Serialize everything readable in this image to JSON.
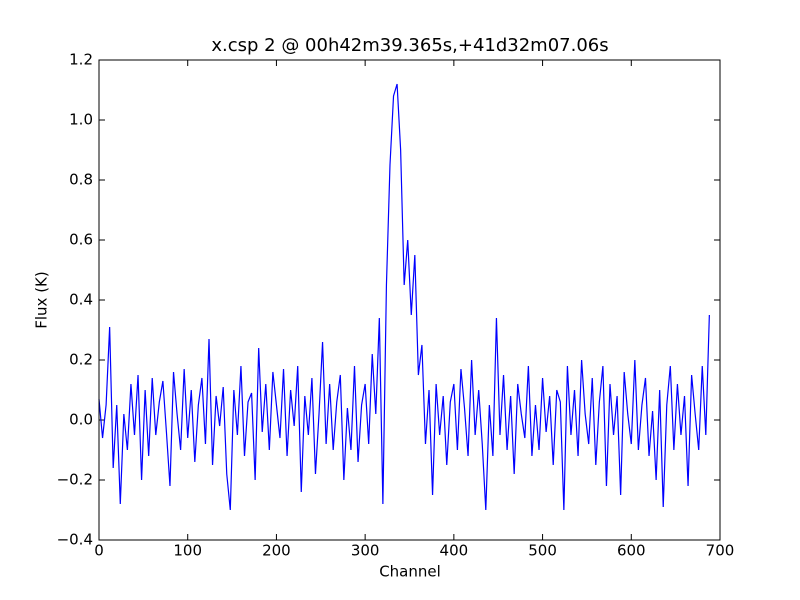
{
  "chart_data": {
    "type": "line",
    "title": "x.csp 2 @ 00h42m39.365s,+41d32m07.06s",
    "x_label": "Channel",
    "y_label": "Flux (K)",
    "xlim": [
      0,
      700
    ],
    "xticks": [
      0,
      100,
      200,
      300,
      400,
      500,
      600,
      700
    ],
    "ylim": [
      -0.4,
      1.2
    ],
    "yticks": [
      {
        "value": -0.4,
        "label": "−0.4"
      },
      {
        "value": -0.2,
        "label": "−0.2"
      },
      {
        "value": 0,
        "label": "0.0"
      },
      {
        "value": 0.2,
        "label": "0.2"
      },
      {
        "value": 0.4,
        "label": "0.4"
      },
      {
        "value": 0.6,
        "label": "0.6"
      },
      {
        "value": 0.8,
        "label": "0.8"
      },
      {
        "value": 1.0,
        "label": "1.0"
      },
      {
        "value": 1.2,
        "label": "1.2"
      }
    ],
    "x": [
      0,
      4,
      8,
      12,
      16,
      20,
      24,
      28,
      32,
      36,
      40,
      44,
      48,
      52,
      56,
      60,
      64,
      68,
      72,
      76,
      80,
      84,
      88,
      92,
      96,
      100,
      104,
      108,
      112,
      116,
      120,
      124,
      128,
      132,
      136,
      140,
      144,
      148,
      152,
      156,
      160,
      164,
      168,
      172,
      176,
      180,
      184,
      188,
      192,
      196,
      200,
      204,
      208,
      212,
      216,
      220,
      224,
      228,
      232,
      236,
      240,
      244,
      248,
      252,
      256,
      260,
      264,
      268,
      272,
      276,
      280,
      284,
      288,
      292,
      296,
      300,
      304,
      308,
      312,
      316,
      320,
      324,
      328,
      332,
      336,
      340,
      344,
      348,
      352,
      356,
      360,
      364,
      368,
      372,
      376,
      380,
      384,
      388,
      392,
      396,
      400,
      404,
      408,
      412,
      416,
      420,
      424,
      428,
      432,
      436,
      440,
      444,
      448,
      452,
      456,
      460,
      464,
      468,
      472,
      476,
      480,
      484,
      488,
      492,
      496,
      500,
      504,
      508,
      512,
      516,
      520,
      524,
      528,
      532,
      536,
      540,
      544,
      548,
      552,
      556,
      560,
      564,
      568,
      572,
      576,
      580,
      584,
      588,
      592,
      596,
      600,
      604,
      608,
      612,
      616,
      620,
      624,
      628,
      632,
      636,
      640,
      644,
      648,
      652,
      656,
      660,
      664,
      668,
      672,
      676,
      680,
      684,
      688
    ],
    "series": [
      {
        "color": "#0000ff",
        "values": [
          0.07,
          -0.06,
          0.05,
          0.31,
          -0.16,
          0.05,
          -0.28,
          0.02,
          -0.1,
          0.12,
          -0.05,
          0.15,
          -0.2,
          0.1,
          -0.12,
          0.14,
          -0.05,
          0.06,
          0.13,
          -0.04,
          -0.22,
          0.16,
          0.02,
          -0.1,
          0.17,
          -0.06,
          0.1,
          -0.14,
          0.05,
          0.14,
          -0.08,
          0.27,
          -0.15,
          0.08,
          -0.02,
          0.11,
          -0.18,
          -0.3,
          0.1,
          -0.05,
          0.18,
          -0.12,
          0.06,
          0.09,
          -0.2,
          0.24,
          -0.04,
          0.12,
          -0.1,
          0.16,
          0.05,
          -0.06,
          0.17,
          -0.12,
          0.1,
          -0.02,
          0.18,
          -0.24,
          0.08,
          -0.05,
          0.14,
          -0.18,
          0.02,
          0.26,
          -0.08,
          0.12,
          -0.1,
          0.06,
          0.15,
          -0.2,
          0.04,
          -0.1,
          0.18,
          -0.14,
          0.05,
          0.12,
          -0.08,
          0.22,
          0.02,
          0.34,
          -0.28,
          0.45,
          0.85,
          1.08,
          1.12,
          0.9,
          0.45,
          0.6,
          0.35,
          0.55,
          0.15,
          0.25,
          -0.08,
          0.1,
          -0.25,
          0.12,
          -0.05,
          0.08,
          -0.15,
          0.06,
          0.12,
          -0.1,
          0.17,
          0.04,
          -0.12,
          0.2,
          -0.05,
          0.1,
          -0.08,
          -0.3,
          0.05,
          -0.12,
          0.34,
          -0.05,
          0.15,
          -0.1,
          0.08,
          -0.18,
          0.12,
          0.02,
          -0.06,
          0.18,
          -0.12,
          0.05,
          -0.1,
          0.14,
          -0.04,
          0.08,
          -0.15,
          0.1,
          0.06,
          -0.3,
          0.18,
          -0.05,
          0.1,
          -0.12,
          0.2,
          0.02,
          -0.08,
          0.14,
          -0.15,
          0.06,
          0.18,
          -0.22,
          0.12,
          -0.05,
          0.08,
          -0.25,
          0.16,
          0.02,
          -0.08,
          0.2,
          -0.1,
          0.05,
          0.14,
          -0.12,
          0.03,
          -0.2,
          0.1,
          -0.29,
          0.05,
          0.18,
          -0.1,
          0.12,
          -0.05,
          0.08,
          -0.22,
          0.15,
          0.02,
          -0.1,
          0.18,
          -0.05,
          0.35
        ]
      }
    ]
  }
}
